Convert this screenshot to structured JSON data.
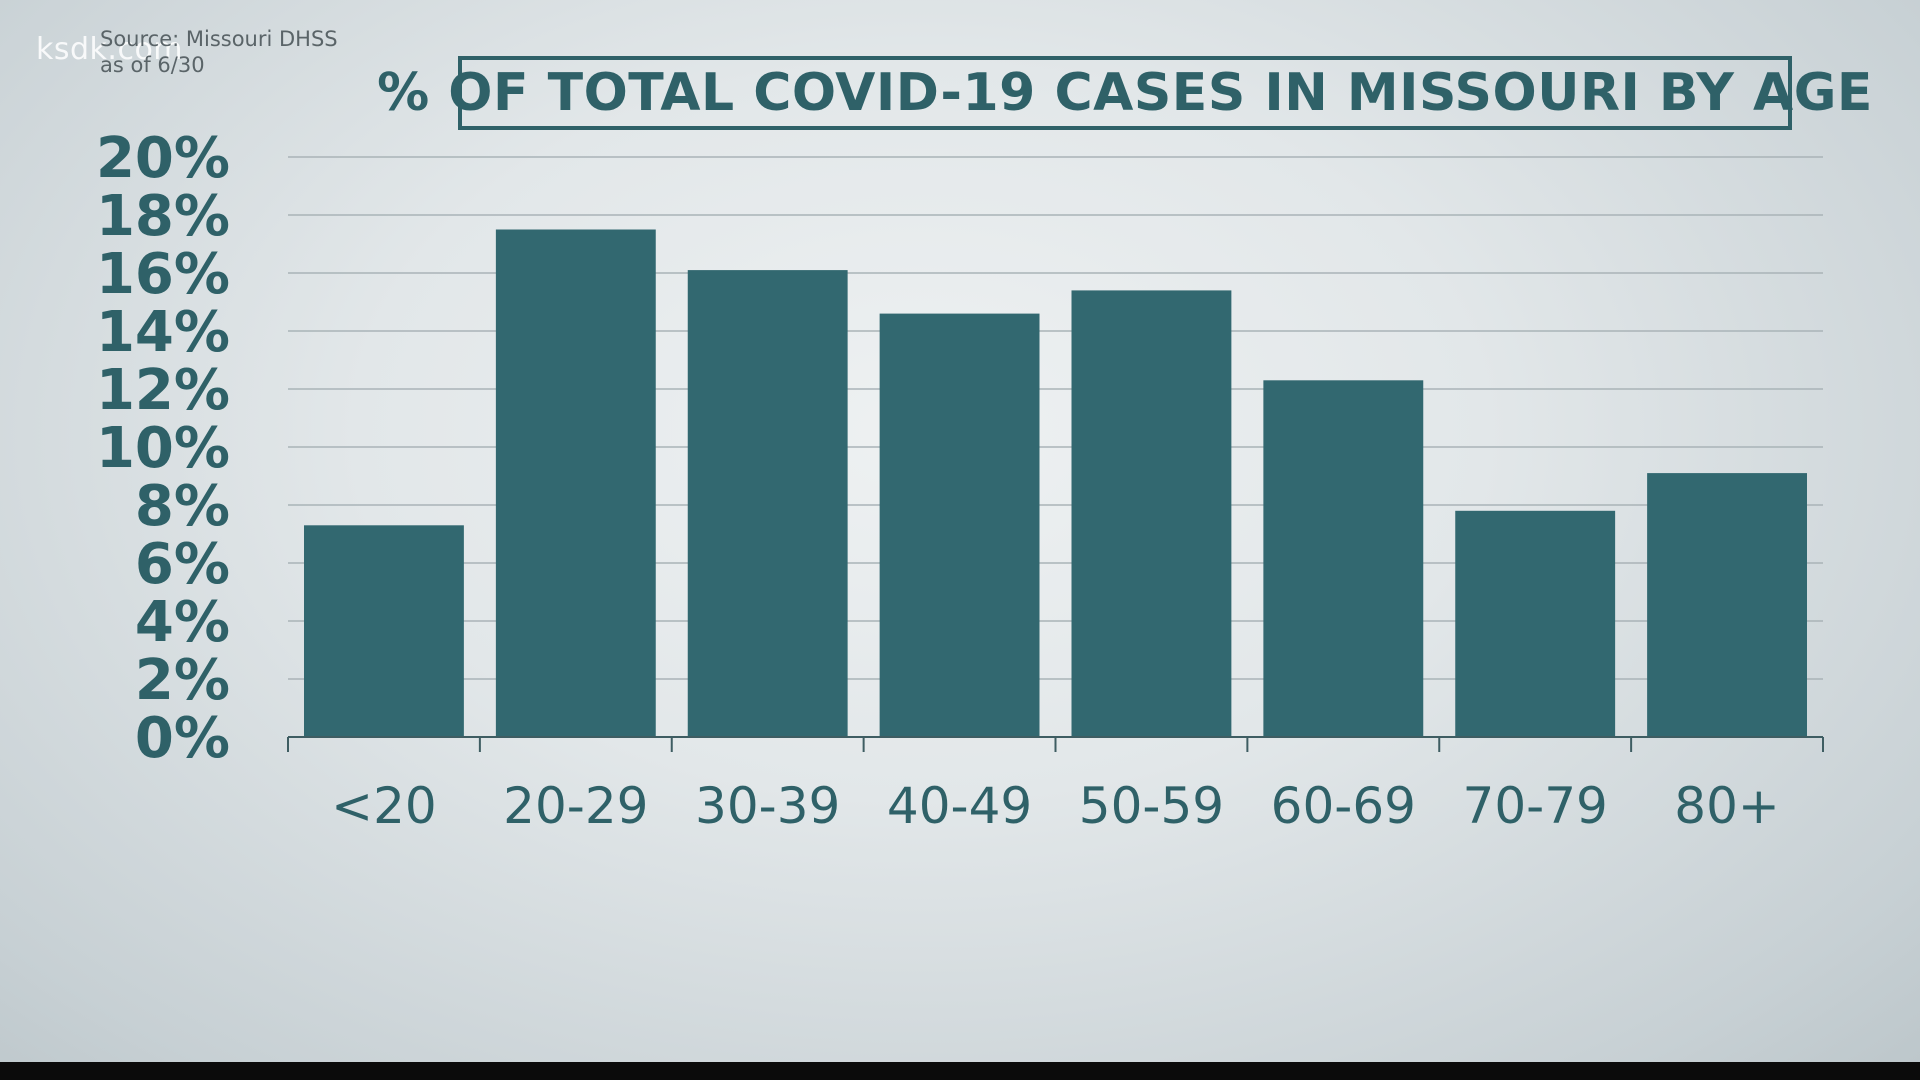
{
  "watermark": "ksdk.com",
  "source": {
    "line1": "Source: Missouri DHSS",
    "line2": "as of 6/30"
  },
  "colors": {
    "bar": "#326870",
    "text": "#2f6168",
    "grid": "#a9b3b7",
    "axis": "#3e5d62"
  },
  "chart_data": {
    "type": "bar",
    "title": "% OF TOTAL COVID-19 CASES IN MISSOURI BY AGE",
    "categories": [
      "<20",
      "20-29",
      "30-39",
      "40-49",
      "50-59",
      "60-69",
      "70-79",
      "80+"
    ],
    "values": [
      7.3,
      17.5,
      16.1,
      14.6,
      15.4,
      12.3,
      7.8,
      9.1
    ],
    "unit": "%",
    "ylim": [
      0,
      20
    ],
    "yticks": [
      "0%",
      "2%",
      "4%",
      "6%",
      "8%",
      "10%",
      "12%",
      "14%",
      "16%",
      "18%",
      "20%"
    ],
    "grid": true,
    "legend": "none"
  }
}
